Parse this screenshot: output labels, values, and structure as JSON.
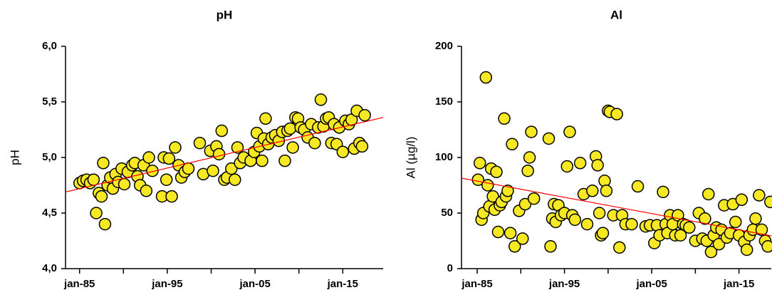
{
  "chart_data": [
    {
      "type": "scatter",
      "title": "pH",
      "ylabel": "pH",
      "color": "#f7e824",
      "edgecolor": "#000000",
      "xlim": [
        1983.4,
        2019.6
      ],
      "ylim": [
        4,
        6
      ],
      "xticks": [
        {
          "value": 1985,
          "label": "jan-85"
        },
        {
          "value": 1995,
          "label": "jan-95"
        },
        {
          "value": 2005,
          "label": "jan-05"
        },
        {
          "value": 2015,
          "label": "jan-15"
        }
      ],
      "xminorticks": [
        1990,
        2000,
        2010
      ],
      "yticks": [
        {
          "value": 4,
          "label": "4,0"
        },
        {
          "value": 4.5,
          "label": "4,5"
        },
        {
          "value": 5,
          "label": "5,0"
        },
        {
          "value": 5.5,
          "label": "5,5"
        },
        {
          "value": 6,
          "label": "6,0"
        }
      ],
      "trend": {
        "x": [
          1983.4,
          2019.6
        ],
        "values": [
          4.69,
          5.36
        ],
        "color": "#ff0000"
      },
      "x": [
        1985.0,
        1985.4,
        1985.8,
        1986.2,
        1986.6,
        1986.9,
        1987.2,
        1987.5,
        1987.7,
        1987.9,
        1988.2,
        1988.5,
        1988.8,
        1989.1,
        1989.4,
        1989.8,
        1990.1,
        1990.5,
        1991,
        1991.3,
        1991.6,
        1991.9,
        1992.3,
        1992.6,
        1992.9,
        1993.3,
        1994.4,
        1994.6,
        1994.9,
        1995.2,
        1995.5,
        1995.9,
        1996.3,
        1996.6,
        1997,
        1997.4,
        1998.7,
        1999.1,
        1999.9,
        2000.2,
        2000.6,
        2000.9,
        2001.2,
        2001.5,
        2001.8,
        2002.3,
        2002.7,
        2003,
        2003.3,
        2003.7,
        2004.5,
        2004.9,
        2005.2,
        2005.5,
        2005.8,
        2006,
        2006.2,
        2006.5,
        2006.9,
        2007.3,
        2007.7,
        2008.1,
        2008.4,
        2008.7,
        2009,
        2009.3,
        2009.6,
        2009.9,
        2010.2,
        2010.6,
        2011,
        2011.4,
        2011.8,
        2012.2,
        2012.5,
        2012.8,
        2013.1,
        2013.4,
        2013.7,
        2014,
        2014.3,
        2014.6,
        2015,
        2015.3,
        2015.7,
        2016,
        2016.3,
        2016.6,
        2016.9,
        2017.2,
        2017.5
      ],
      "values": [
        4.77,
        4.79,
        4.8,
        4.77,
        4.8,
        4.5,
        4.68,
        4.65,
        4.95,
        4.4,
        4.75,
        4.82,
        4.72,
        4.85,
        4.78,
        4.9,
        4.76,
        4.87,
        4.93,
        4.95,
        4.83,
        4.75,
        4.93,
        4.7,
        5.0,
        4.88,
        4.65,
        5.0,
        4.8,
        4.99,
        4.65,
        5.09,
        4.93,
        4.82,
        4.87,
        4.9,
        5.13,
        4.85,
        5.06,
        4.88,
        5.1,
        5.03,
        5.24,
        4.8,
        4.82,
        4.9,
        4.8,
        5.09,
        4.95,
        5.0,
        4.97,
        5.05,
        5.22,
        5.1,
        4.97,
        5.17,
        5.35,
        5.12,
        5.18,
        5.2,
        5.15,
        5.23,
        4.97,
        5.24,
        5.26,
        5.09,
        5.36,
        5.35,
        5.27,
        5.25,
        5.18,
        5.3,
        5.13,
        5.27,
        5.52,
        5.28,
        5.35,
        5.36,
        5.13,
        5.3,
        5.12,
        5.27,
        5.05,
        5.33,
        5.3,
        5.34,
        5.08,
        5.42,
        5.13,
        5.1,
        5.38
      ]
    },
    {
      "type": "scatter",
      "title": "Al",
      "ylabel": "Al (µg/l)",
      "color": "#f7e824",
      "edgecolor": "#000000",
      "xlim": [
        1983.2,
        2018.7
      ],
      "ylim": [
        0,
        200
      ],
      "xticks": [
        {
          "value": 1985,
          "label": "jan-85"
        },
        {
          "value": 1995,
          "label": "jan-95"
        },
        {
          "value": 2005,
          "label": "jan-05"
        },
        {
          "value": 2015,
          "label": "jan-15"
        }
      ],
      "xminorticks": [
        1990,
        2000,
        2010
      ],
      "yticks": [
        0,
        50,
        100,
        150,
        200
      ],
      "trend": {
        "x": [
          1983.2,
          2018.7
        ],
        "values": [
          81.4,
          29.5
        ],
        "color": "#ff0000"
      },
      "x": [
        1985.1,
        1985.3,
        1985.5,
        1985.7,
        1986,
        1986.2,
        1986.4,
        1986.6,
        1986.8,
        1987,
        1987.2,
        1987.4,
        1987.6,
        1987.8,
        1988.1,
        1988.3,
        1988.5,
        1988.8,
        1989,
        1989.3,
        1989.8,
        1990.2,
        1990.5,
        1990.8,
        1991,
        1991.2,
        1991.5,
        1993.2,
        1993.4,
        1993.6,
        1993.8,
        1994,
        1994.3,
        1994.6,
        1995,
        1995.3,
        1995.6,
        1995.9,
        1996.2,
        1996.8,
        1997.2,
        1997.6,
        1998.2,
        1998.6,
        1998.8,
        1999,
        1999.2,
        1999.4,
        1999.6,
        1999.8,
        2000,
        2000.2,
        2000.6,
        2001,
        2001.3,
        2001.6,
        2002,
        2002.7,
        2003.4,
        2004.3,
        2004.8,
        2005.3,
        2005.6,
        2005.9,
        2006.3,
        2006.6,
        2006.8,
        2007.1,
        2007.4,
        2007.7,
        2008,
        2008.3,
        2008.6,
        2008.9,
        2009.3,
        2010,
        2010.4,
        2010.8,
        2011.1,
        2011.3,
        2011.5,
        2011.8,
        2012.1,
        2012.4,
        2012.7,
        2013,
        2013.3,
        2013.6,
        2014,
        2014.3,
        2014.6,
        2015,
        2015.3,
        2015.6,
        2015.9,
        2016.2,
        2016.6,
        2016.9,
        2017.3,
        2017.6,
        2018,
        2018.3,
        2018.6
      ],
      "values": [
        80,
        95,
        44,
        50,
        172,
        75,
        56,
        90,
        65,
        53,
        87,
        33,
        57,
        60,
        135,
        65,
        70,
        32,
        112,
        20,
        52,
        27,
        58,
        88,
        100,
        123,
        63,
        117,
        20,
        45,
        58,
        42,
        57,
        48,
        50,
        92,
        123,
        48,
        44,
        95,
        67,
        40,
        70,
        101,
        93,
        50,
        30,
        32,
        79,
        70,
        142,
        141,
        48,
        139,
        19,
        48,
        40,
        40,
        74,
        38,
        39,
        23,
        39,
        30,
        69,
        40,
        32,
        48,
        40,
        30,
        48,
        30,
        40,
        39,
        37,
        25,
        50,
        27,
        45,
        25,
        67,
        15,
        30,
        37,
        22,
        35,
        57,
        28,
        32,
        58,
        42,
        30,
        62,
        24,
        17,
        30,
        35,
        45,
        66,
        35,
        25,
        20,
        60
      ]
    }
  ]
}
